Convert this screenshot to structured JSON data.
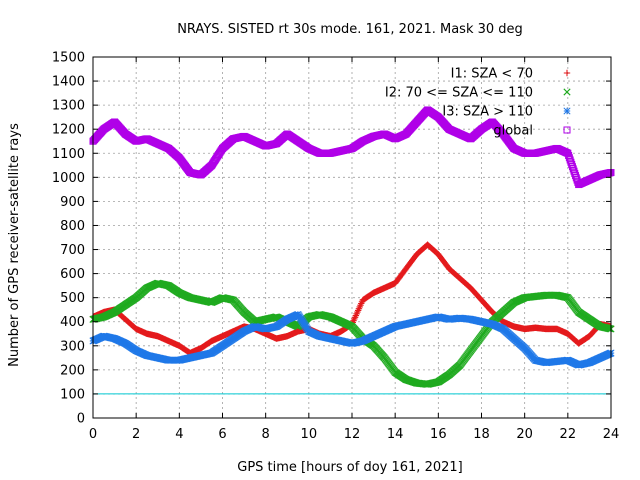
{
  "chart_data": {
    "type": "scatter",
    "title": "NRAYS. SISTED rt 30s mode. 161, 2021. Mask 30 deg",
    "xlabel": "GPS time [hours of doy 161, 2021]",
    "ylabel": "Number of GPS receiver-satellite rays",
    "xlim": [
      0,
      24
    ],
    "ylim": [
      0,
      1500
    ],
    "xticks": [
      "0",
      "2",
      "4",
      "6",
      "8",
      "10",
      "12",
      "14",
      "16",
      "18",
      "20",
      "22",
      "24"
    ],
    "yticks": [
      "0",
      "100",
      "200",
      "300",
      "400",
      "500",
      "600",
      "700",
      "800",
      "900",
      "1000",
      "1100",
      "1200",
      "1300",
      "1400",
      "1500"
    ],
    "grid": true,
    "legend_position": "top-right",
    "reference_line": {
      "y": 100,
      "color": "#00c8d0"
    },
    "x": [
      0,
      0.5,
      1,
      1.5,
      2,
      2.5,
      3,
      3.5,
      4,
      4.5,
      5,
      5.5,
      6,
      6.5,
      7,
      7.5,
      8,
      8.5,
      9,
      9.5,
      10,
      10.5,
      11,
      11.5,
      12,
      12.5,
      13,
      13.5,
      14,
      14.5,
      15,
      15.5,
      16,
      16.5,
      17,
      17.5,
      18,
      18.5,
      19,
      19.5,
      20,
      20.5,
      21,
      21.5,
      22,
      22.5,
      23,
      23.5,
      24
    ],
    "series": [
      {
        "name": "I1: SZA < 70",
        "marker": "+",
        "color": "#e41a1c",
        "values": [
          420,
          440,
          450,
          410,
          370,
          350,
          340,
          320,
          300,
          270,
          290,
          320,
          340,
          360,
          380,
          370,
          350,
          330,
          340,
          360,
          370,
          350,
          340,
          360,
          390,
          490,
          520,
          540,
          560,
          620,
          680,
          720,
          680,
          620,
          580,
          540,
          490,
          440,
          400,
          380,
          370,
          375,
          370,
          370,
          350,
          310,
          340,
          390,
          380
        ]
      },
      {
        "name": "I2: 70 <= SZA <= 110",
        "marker": "x",
        "color": "#1faa1f",
        "values": [
          410,
          420,
          440,
          470,
          500,
          540,
          560,
          550,
          520,
          500,
          490,
          480,
          500,
          490,
          440,
          400,
          410,
          420,
          400,
          380,
          420,
          430,
          420,
          400,
          380,
          330,
          300,
          250,
          190,
          160,
          145,
          140,
          150,
          180,
          220,
          280,
          340,
          400,
          440,
          480,
          500,
          505,
          510,
          510,
          500,
          440,
          410,
          380,
          370
        ]
      },
      {
        "name": "I3: SZA > 110",
        "marker": "*",
        "color": "#1f78e8",
        "values": [
          320,
          340,
          330,
          310,
          280,
          260,
          250,
          240,
          240,
          250,
          260,
          270,
          300,
          330,
          360,
          380,
          370,
          380,
          410,
          430,
          360,
          340,
          330,
          320,
          310,
          320,
          340,
          360,
          380,
          390,
          400,
          410,
          420,
          410,
          415,
          410,
          400,
          390,
          370,
          330,
          290,
          240,
          230,
          235,
          240,
          220,
          230,
          250,
          270
        ]
      },
      {
        "name": "global",
        "marker": "square",
        "color": "#b000e8",
        "values": [
          1150,
          1200,
          1230,
          1180,
          1150,
          1160,
          1140,
          1120,
          1080,
          1020,
          1010,
          1050,
          1120,
          1160,
          1170,
          1150,
          1130,
          1140,
          1180,
          1150,
          1120,
          1100,
          1100,
          1110,
          1120,
          1150,
          1170,
          1180,
          1160,
          1180,
          1230,
          1280,
          1250,
          1200,
          1180,
          1160,
          1200,
          1230,
          1180,
          1120,
          1100,
          1100,
          1110,
          1120,
          1100,
          970,
          990,
          1010,
          1020
        ]
      }
    ]
  }
}
